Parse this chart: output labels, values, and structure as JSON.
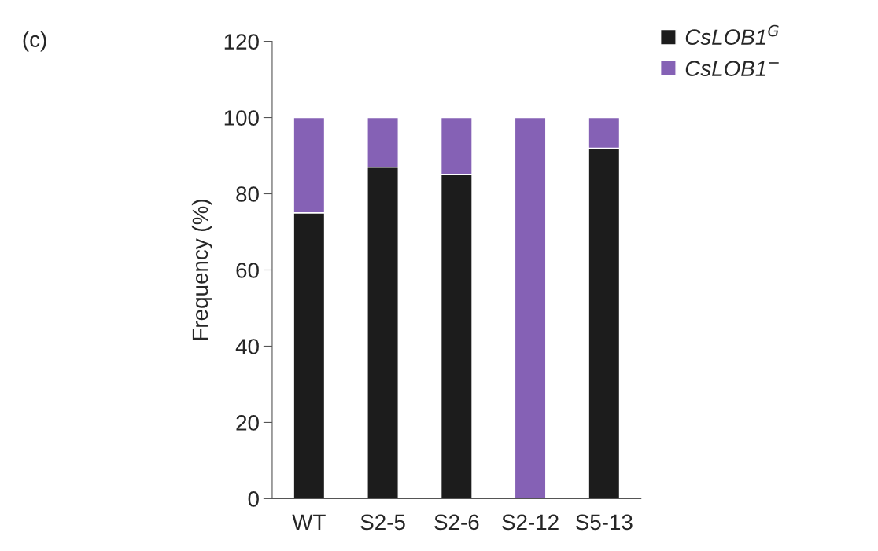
{
  "chart_data": {
    "type": "bar",
    "title": "(c)",
    "ylabel": "Frequency (%)",
    "categories": [
      "WT",
      "S2-5",
      "S2-6",
      "S2-12",
      "S5-13"
    ],
    "series": [
      {
        "name": "CsLOB1$^{G}$",
        "color": "#1c1c1c",
        "values": [
          75,
          87,
          85,
          0,
          92
        ]
      },
      {
        "name": "CsLOB1$^{−}$",
        "color": "#8561b5",
        "values": [
          25,
          13,
          15,
          100,
          8
        ]
      }
    ],
    "stacked": true,
    "ylim": [
      0,
      120
    ],
    "yticks": [
      0,
      20,
      40,
      60,
      80,
      100,
      120
    ],
    "grid": false,
    "legend": "top right"
  }
}
